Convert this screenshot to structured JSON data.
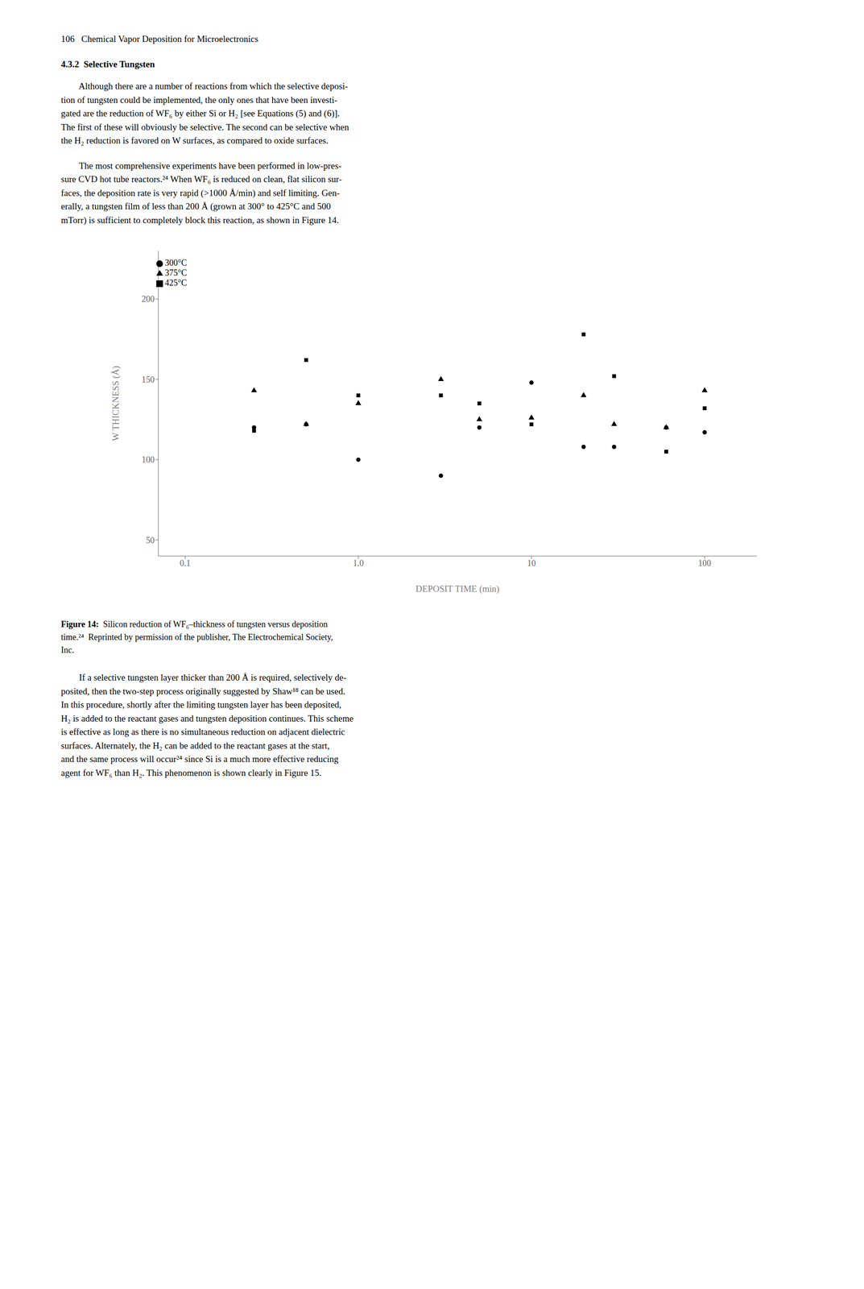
{
  "chart_data": {
    "type": "scatter",
    "xlabel": "DEPOSIT TIME (min)",
    "ylabel": "W THICKNESS (Å)",
    "log": "x",
    "grid": false,
    "legend": "upper left",
    "xlim": [
      0.07,
      200
    ],
    "ylim": [
      40,
      230
    ],
    "xticks": [
      0.1,
      {
        "value": 1,
        "label": "1.0"
      },
      10,
      100
    ],
    "yticks": [
      50,
      100,
      150,
      200
    ],
    "x": [
      0.25,
      0.5,
      1.0,
      3.0,
      5.0,
      10.0,
      20.0,
      30.0,
      60.0,
      100.0
    ],
    "series": [
      {
        "name": "300°C",
        "color": "#000000",
        "marker": "circle",
        "values": [
          120,
          122,
          100,
          90,
          120,
          148,
          108,
          108,
          120,
          117
        ]
      },
      {
        "name": "375°C",
        "color": "#000000",
        "marker": "triangle",
        "values": [
          143,
          122,
          135,
          150,
          125,
          126,
          140,
          122,
          120,
          143
        ]
      },
      {
        "name": "425°C",
        "color": "#000000",
        "marker": "square",
        "values": [
          118,
          162,
          140,
          140,
          135,
          122,
          178,
          152,
          105,
          132
        ]
      }
    ],
    "annotations": [
      "106   Chemical Vapor Deposition for Microelectronics",
      "4.3.2  Selective Tungsten",
      "        Although there are a number of reactions from which the selective deposi-\ntion of tungsten could be implemented, the only ones that have been investi-\ngated are the reduction of WF₆ by either Si or H₂ [see Equations (5) and (6)].\nThe first of these will obviously be selective. The second can be selective when\nthe H₂ reduction is favored on W surfaces, as compared to oxide surfaces.",
      "        The most comprehensive experiments have been performed in low-pres-\nsure CVD hot tube reactors.²⁴ When WF₆ is reduced on clean, flat silicon sur-\nfaces, the deposition rate is very rapid (>1000 Å/min) and self limiting. Gen-\nerally, a tungsten film of less than 200 Å (grown at 300° to 425°C and 500\nmTorr) is sufficient to completely block this reaction, as shown in Figure 14.",
      "Figure 14:  Silicon reduction of WF₆–thickness of tungsten versus deposition\ntime.²⁴  Reprinted by permission of the publisher, The Electrochemical Society,\nInc.",
      "        If a selective tungsten layer thicker than 200 Å is required, selectively de-\nposited, then the two-step process originally suggested by Shaw¹⁸ can be used.\nIn this procedure, shortly after the limiting tungsten layer has been deposited,\nH₂ is added to the reactant gases and tungsten deposition continues. This scheme\nis effective as long as there is no simultaneous reduction on adjacent dielectric\nsurfaces. Alternately, the H₂ can be added to the reactant gases at the start,\nand the same process will occur²⁴ since Si is a much more effective reducing\nagent for WF₆ than H₂. This phenomenon is shown clearly in Figure 15."
    ]
  }
}
